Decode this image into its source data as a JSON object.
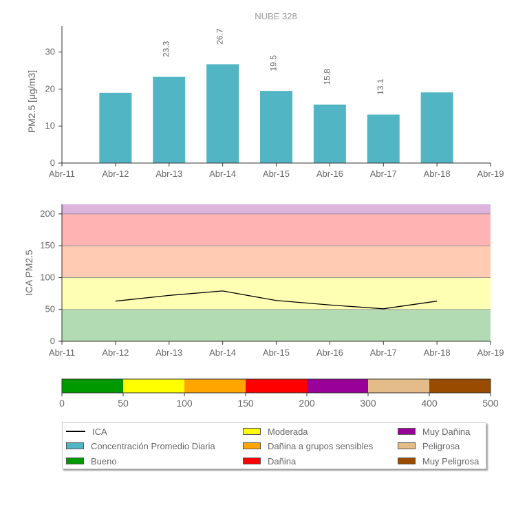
{
  "chart_data": [
    {
      "type": "bar",
      "title": "NUBE 328",
      "ylabel": "PM2.5 [μg/m3]",
      "x_ticks": [
        "Abr-11",
        "Abr-12",
        "Abr-13",
        "Abr-14",
        "Abr-15",
        "Abr-16",
        "Abr-17",
        "Abr-18",
        "Abr-19"
      ],
      "categories": [
        "Abr-12",
        "Abr-13",
        "Abr-14",
        "Abr-15",
        "Abr-16",
        "Abr-17",
        "Abr-18"
      ],
      "values": [
        19.0,
        23.3,
        26.7,
        19.5,
        15.8,
        13.1,
        19.1
      ],
      "data_labels": [
        "",
        "23.3",
        "26.7",
        "19.5",
        "15.8",
        "13.1",
        ""
      ],
      "ylim": [
        0,
        37
      ],
      "y_ticks": [
        0,
        10,
        20,
        30
      ],
      "bar_color": "#52b5c4"
    },
    {
      "type": "line",
      "ylabel": "ICA PM2.5",
      "x_ticks": [
        "Abr-11",
        "Abr-12",
        "Abr-13",
        "Abr-14",
        "Abr-15",
        "Abr-16",
        "Abr-17",
        "Abr-18",
        "Abr-19"
      ],
      "categories": [
        "Abr-12",
        "Abr-13",
        "Abr-14",
        "Abr-15",
        "Abr-16",
        "Abr-17",
        "Abr-18"
      ],
      "values": [
        63,
        72,
        79,
        64,
        57,
        51,
        63
      ],
      "ylim": [
        0,
        215
      ],
      "y_ticks": [
        0,
        50,
        100,
        150,
        200
      ],
      "line_color": "#000000",
      "bands": [
        {
          "from": 0,
          "to": 50,
          "color": "#b3dbb3"
        },
        {
          "from": 50,
          "to": 100,
          "color": "#ffffb3"
        },
        {
          "from": 100,
          "to": 150,
          "color": "#ffcbb3"
        },
        {
          "from": 150,
          "to": 200,
          "color": "#ffb3b3"
        },
        {
          "from": 200,
          "to": 215,
          "color": "#dbb3db"
        }
      ]
    },
    {
      "type": "scale",
      "ticks": [
        "0",
        "50",
        "100",
        "150",
        "200",
        "300",
        "400",
        "500"
      ],
      "colors": [
        "#009900",
        "#ffff00",
        "#ffa500",
        "#ff0000",
        "#990099",
        "#e3bc8a",
        "#994c00"
      ]
    }
  ],
  "legend": {
    "items": [
      {
        "label": "ICA",
        "kind": "line",
        "color": "#000000"
      },
      {
        "label": "Concentración Promedio Diaria",
        "kind": "swatch",
        "color": "#52b5c4"
      },
      {
        "label": "Bueno",
        "kind": "swatch",
        "color": "#009900"
      },
      {
        "label": "Moderada",
        "kind": "swatch",
        "color": "#ffff00"
      },
      {
        "label": "Dañina a grupos sensibles",
        "kind": "swatch",
        "color": "#ffa500"
      },
      {
        "label": "Dañina",
        "kind": "swatch",
        "color": "#ff0000"
      },
      {
        "label": "Muy Dañina",
        "kind": "swatch",
        "color": "#990099"
      },
      {
        "label": "Peligrosa",
        "kind": "swatch",
        "color": "#e3bc8a"
      },
      {
        "label": "Muy Peligrosa",
        "kind": "swatch",
        "color": "#994c00"
      }
    ]
  }
}
